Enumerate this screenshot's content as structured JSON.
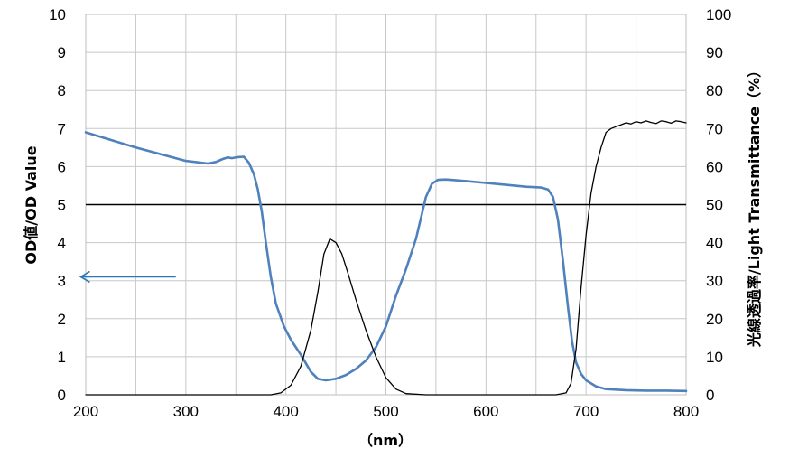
{
  "chart_data": {
    "type": "line",
    "title": "",
    "xlabel": "（nm）",
    "ylabel_left": "OD値/OD Value",
    "ylabel_right": "光線透過率/Light Transmittance（%）",
    "xlim": [
      200,
      800
    ],
    "ylim_left": [
      0,
      10
    ],
    "ylim_right": [
      0,
      100
    ],
    "x_ticks": [
      "200",
      "300",
      "400",
      "500",
      "600",
      "700",
      "800"
    ],
    "y_ticks_left": [
      "0",
      "1",
      "2",
      "3",
      "4",
      "5",
      "6",
      "7",
      "8",
      "9",
      "10"
    ],
    "y_ticks_right": [
      "0",
      "10",
      "20",
      "30",
      "40",
      "50",
      "60",
      "70",
      "80",
      "90",
      "100"
    ],
    "grid": true,
    "reference_line": {
      "axis": "left",
      "value": 5,
      "color": "#000000"
    },
    "arrow": {
      "from": [
        290,
        3.1
      ],
      "to": [
        195,
        3.1
      ],
      "color": "#2e75b6"
    },
    "series": [
      {
        "axis": "left",
        "color": "#4f81bd",
        "x": [
          200,
          250,
          300,
          322,
          330,
          337,
          342,
          346,
          352,
          358,
          363,
          368,
          372,
          376,
          380,
          385,
          390,
          398,
          405,
          415,
          425,
          432,
          440,
          450,
          460,
          470,
          480,
          490,
          500,
          510,
          520,
          530,
          540,
          546,
          552,
          560,
          580,
          600,
          620,
          640,
          655,
          662,
          667,
          672,
          677,
          682,
          686,
          690,
          695,
          700,
          710,
          720,
          740,
          760,
          780,
          800
        ],
        "y": [
          6.9,
          6.5,
          6.15,
          6.08,
          6.12,
          6.2,
          6.24,
          6.22,
          6.25,
          6.26,
          6.1,
          5.8,
          5.4,
          4.8,
          4.0,
          3.1,
          2.4,
          1.8,
          1.45,
          1.05,
          0.6,
          0.42,
          0.38,
          0.42,
          0.52,
          0.68,
          0.9,
          1.25,
          1.8,
          2.6,
          3.3,
          4.1,
          5.2,
          5.55,
          5.65,
          5.66,
          5.62,
          5.57,
          5.52,
          5.47,
          5.45,
          5.4,
          5.2,
          4.6,
          3.5,
          2.3,
          1.4,
          0.85,
          0.55,
          0.38,
          0.22,
          0.15,
          0.12,
          0.11,
          0.11,
          0.1
        ]
      },
      {
        "axis": "right",
        "color": "#000000",
        "x": [
          200,
          300,
          385,
          395,
          405,
          415,
          425,
          432,
          438,
          444,
          450,
          456,
          462,
          470,
          480,
          490,
          500,
          510,
          520,
          540,
          600,
          670,
          680,
          685,
          690,
          695,
          700,
          705,
          710,
          715,
          720,
          725,
          730,
          735,
          740,
          745,
          750,
          755,
          760,
          765,
          770,
          775,
          780,
          785,
          790,
          795,
          800
        ],
        "y": [
          0,
          0,
          0,
          0.5,
          2.5,
          7.5,
          17,
          27,
          37,
          41,
          40,
          37,
          32,
          25,
          17,
          10,
          4.5,
          1.5,
          0.3,
          0,
          0,
          0,
          0.5,
          3,
          12,
          28,
          42,
          53,
          60,
          65,
          69,
          70,
          70.5,
          71,
          71.5,
          71.2,
          71.8,
          71.5,
          72,
          71.6,
          71.3,
          72,
          71.8,
          71.4,
          72,
          71.8,
          71.5
        ]
      }
    ]
  }
}
